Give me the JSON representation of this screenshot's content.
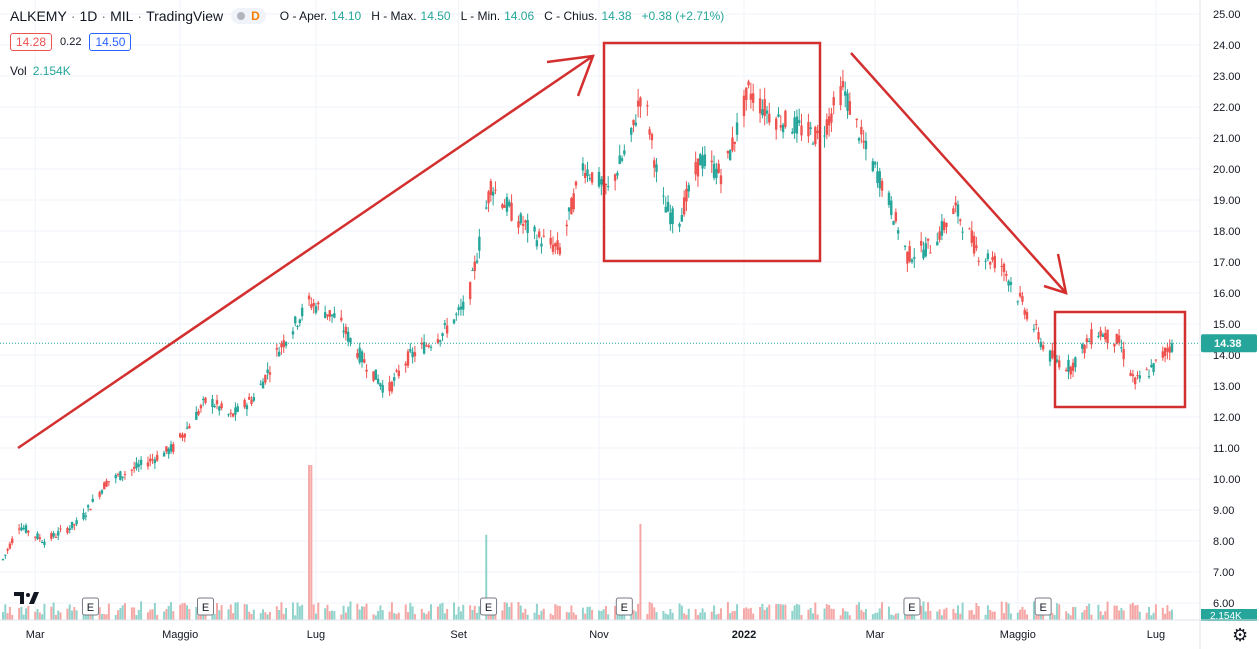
{
  "header": {
    "symbol": "ALKEMY",
    "interval": "1D",
    "exchange": "MIL",
    "provider": "TradingView",
    "flag": "D",
    "ohlc": [
      {
        "k": "O - Aper.",
        "v": "14.10"
      },
      {
        "k": "H - Max.",
        "v": "14.50"
      },
      {
        "k": "L - Min.",
        "v": "14.06"
      },
      {
        "k": "C - Chius.",
        "v": "14.38"
      },
      {
        "k": "",
        "v": "+0.38 (+2.71%)"
      }
    ]
  },
  "quote": {
    "bid": "14.28",
    "spread": "0.22",
    "ask": "14.50"
  },
  "volume": {
    "label": "Vol",
    "value": "2.154K"
  },
  "last_price_label": "14.38",
  "volume_axis_label": "2.154K",
  "colors": {
    "up": "#26a69a",
    "down": "#ef5350",
    "annotation": "#d32f2f",
    "grid": "#f0f3fa",
    "price_tag": "#26a69a"
  },
  "icons": {
    "logo": "tradingview-logo",
    "settings": "gear-icon",
    "earnings": "earnings-flag-icon"
  },
  "earnings_flag_text": "E",
  "chart_data": {
    "type": "candlestick",
    "title": "",
    "xlabel": "",
    "ylabel": "",
    "ylim": [
      6.0,
      25.0
    ],
    "y_ticks": [
      "6.00",
      "7.00",
      "8.00",
      "9.00",
      "10.00",
      "11.00",
      "12.00",
      "13.00",
      "14.00",
      "15.00",
      "16.00",
      "17.00",
      "18.00",
      "19.00",
      "20.00",
      "21.00",
      "22.00",
      "23.00",
      "24.00",
      "25.00"
    ],
    "x_ticks": [
      {
        "label": "Mar",
        "date": "2021-03-01"
      },
      {
        "label": "Maggio",
        "date": "2021-05-03"
      },
      {
        "label": "Lug",
        "date": "2021-07-01"
      },
      {
        "label": "Set",
        "date": "2021-09-01"
      },
      {
        "label": "Nov",
        "date": "2021-11-01"
      },
      {
        "label": "2022",
        "date": "2022-01-03"
      },
      {
        "label": "Mar",
        "date": "2022-03-01"
      },
      {
        "label": "Maggio",
        "date": "2022-05-02"
      },
      {
        "label": "Lug",
        "date": "2022-07-01"
      }
    ],
    "price_path": [
      {
        "date": "2021-02-15",
        "close": 7.4
      },
      {
        "date": "2021-02-22",
        "close": 8.5
      },
      {
        "date": "2021-03-05",
        "close": 8.0
      },
      {
        "date": "2021-03-20",
        "close": 8.6
      },
      {
        "date": "2021-04-01",
        "close": 9.9
      },
      {
        "date": "2021-04-15",
        "close": 10.4
      },
      {
        "date": "2021-04-30",
        "close": 11.0
      },
      {
        "date": "2021-05-15",
        "close": 12.6
      },
      {
        "date": "2021-05-25",
        "close": 12.0
      },
      {
        "date": "2021-06-05",
        "close": 12.7
      },
      {
        "date": "2021-06-15",
        "close": 14.2
      },
      {
        "date": "2021-06-28",
        "close": 15.7
      },
      {
        "date": "2021-07-10",
        "close": 15.2
      },
      {
        "date": "2021-07-20",
        "close": 14.0
      },
      {
        "date": "2021-08-01",
        "close": 12.8
      },
      {
        "date": "2021-08-10",
        "close": 13.9
      },
      {
        "date": "2021-08-25",
        "close": 14.7
      },
      {
        "date": "2021-09-05",
        "close": 15.7
      },
      {
        "date": "2021-09-15",
        "close": 19.5
      },
      {
        "date": "2021-09-25",
        "close": 18.5
      },
      {
        "date": "2021-10-05",
        "close": 17.8
      },
      {
        "date": "2021-10-15",
        "close": 17.4
      },
      {
        "date": "2021-10-25",
        "close": 20.1
      },
      {
        "date": "2021-11-05",
        "close": 19.3
      },
      {
        "date": "2021-11-15",
        "close": 21.0
      },
      {
        "date": "2021-11-20",
        "close": 22.7
      },
      {
        "date": "2021-11-28",
        "close": 19.0
      },
      {
        "date": "2021-12-05",
        "close": 18.2
      },
      {
        "date": "2021-12-15",
        "close": 20.3
      },
      {
        "date": "2021-12-25",
        "close": 19.8
      },
      {
        "date": "2022-01-05",
        "close": 22.5
      },
      {
        "date": "2022-01-15",
        "close": 21.7
      },
      {
        "date": "2022-01-25",
        "close": 21.4
      },
      {
        "date": "2022-02-05",
        "close": 21.0
      },
      {
        "date": "2022-02-15",
        "close": 22.6
      },
      {
        "date": "2022-02-25",
        "close": 20.6
      },
      {
        "date": "2022-03-05",
        "close": 19.4
      },
      {
        "date": "2022-03-15",
        "close": 17.2
      },
      {
        "date": "2022-03-25",
        "close": 17.5
      },
      {
        "date": "2022-04-05",
        "close": 18.7
      },
      {
        "date": "2022-04-15",
        "close": 17.3
      },
      {
        "date": "2022-04-25",
        "close": 16.9
      },
      {
        "date": "2022-05-05",
        "close": 15.5
      },
      {
        "date": "2022-05-15",
        "close": 14.0
      },
      {
        "date": "2022-05-25",
        "close": 13.6
      },
      {
        "date": "2022-06-05",
        "close": 14.8
      },
      {
        "date": "2022-06-15",
        "close": 14.4
      },
      {
        "date": "2022-06-22",
        "close": 13.1
      },
      {
        "date": "2022-06-30",
        "close": 13.6
      },
      {
        "date": "2022-07-08",
        "close": 14.38
      }
    ],
    "last_price": 14.38,
    "earnings_dates": [
      "2021-03-25",
      "2021-05-14",
      "2021-09-14",
      "2021-11-12",
      "2022-03-17",
      "2022-05-13"
    ],
    "volume_spikes": [
      {
        "date": "2021-06-28",
        "relative": 1.0
      },
      {
        "date": "2021-09-12",
        "relative": 0.55
      },
      {
        "date": "2021-11-20",
        "relative": 0.62
      }
    ]
  }
}
